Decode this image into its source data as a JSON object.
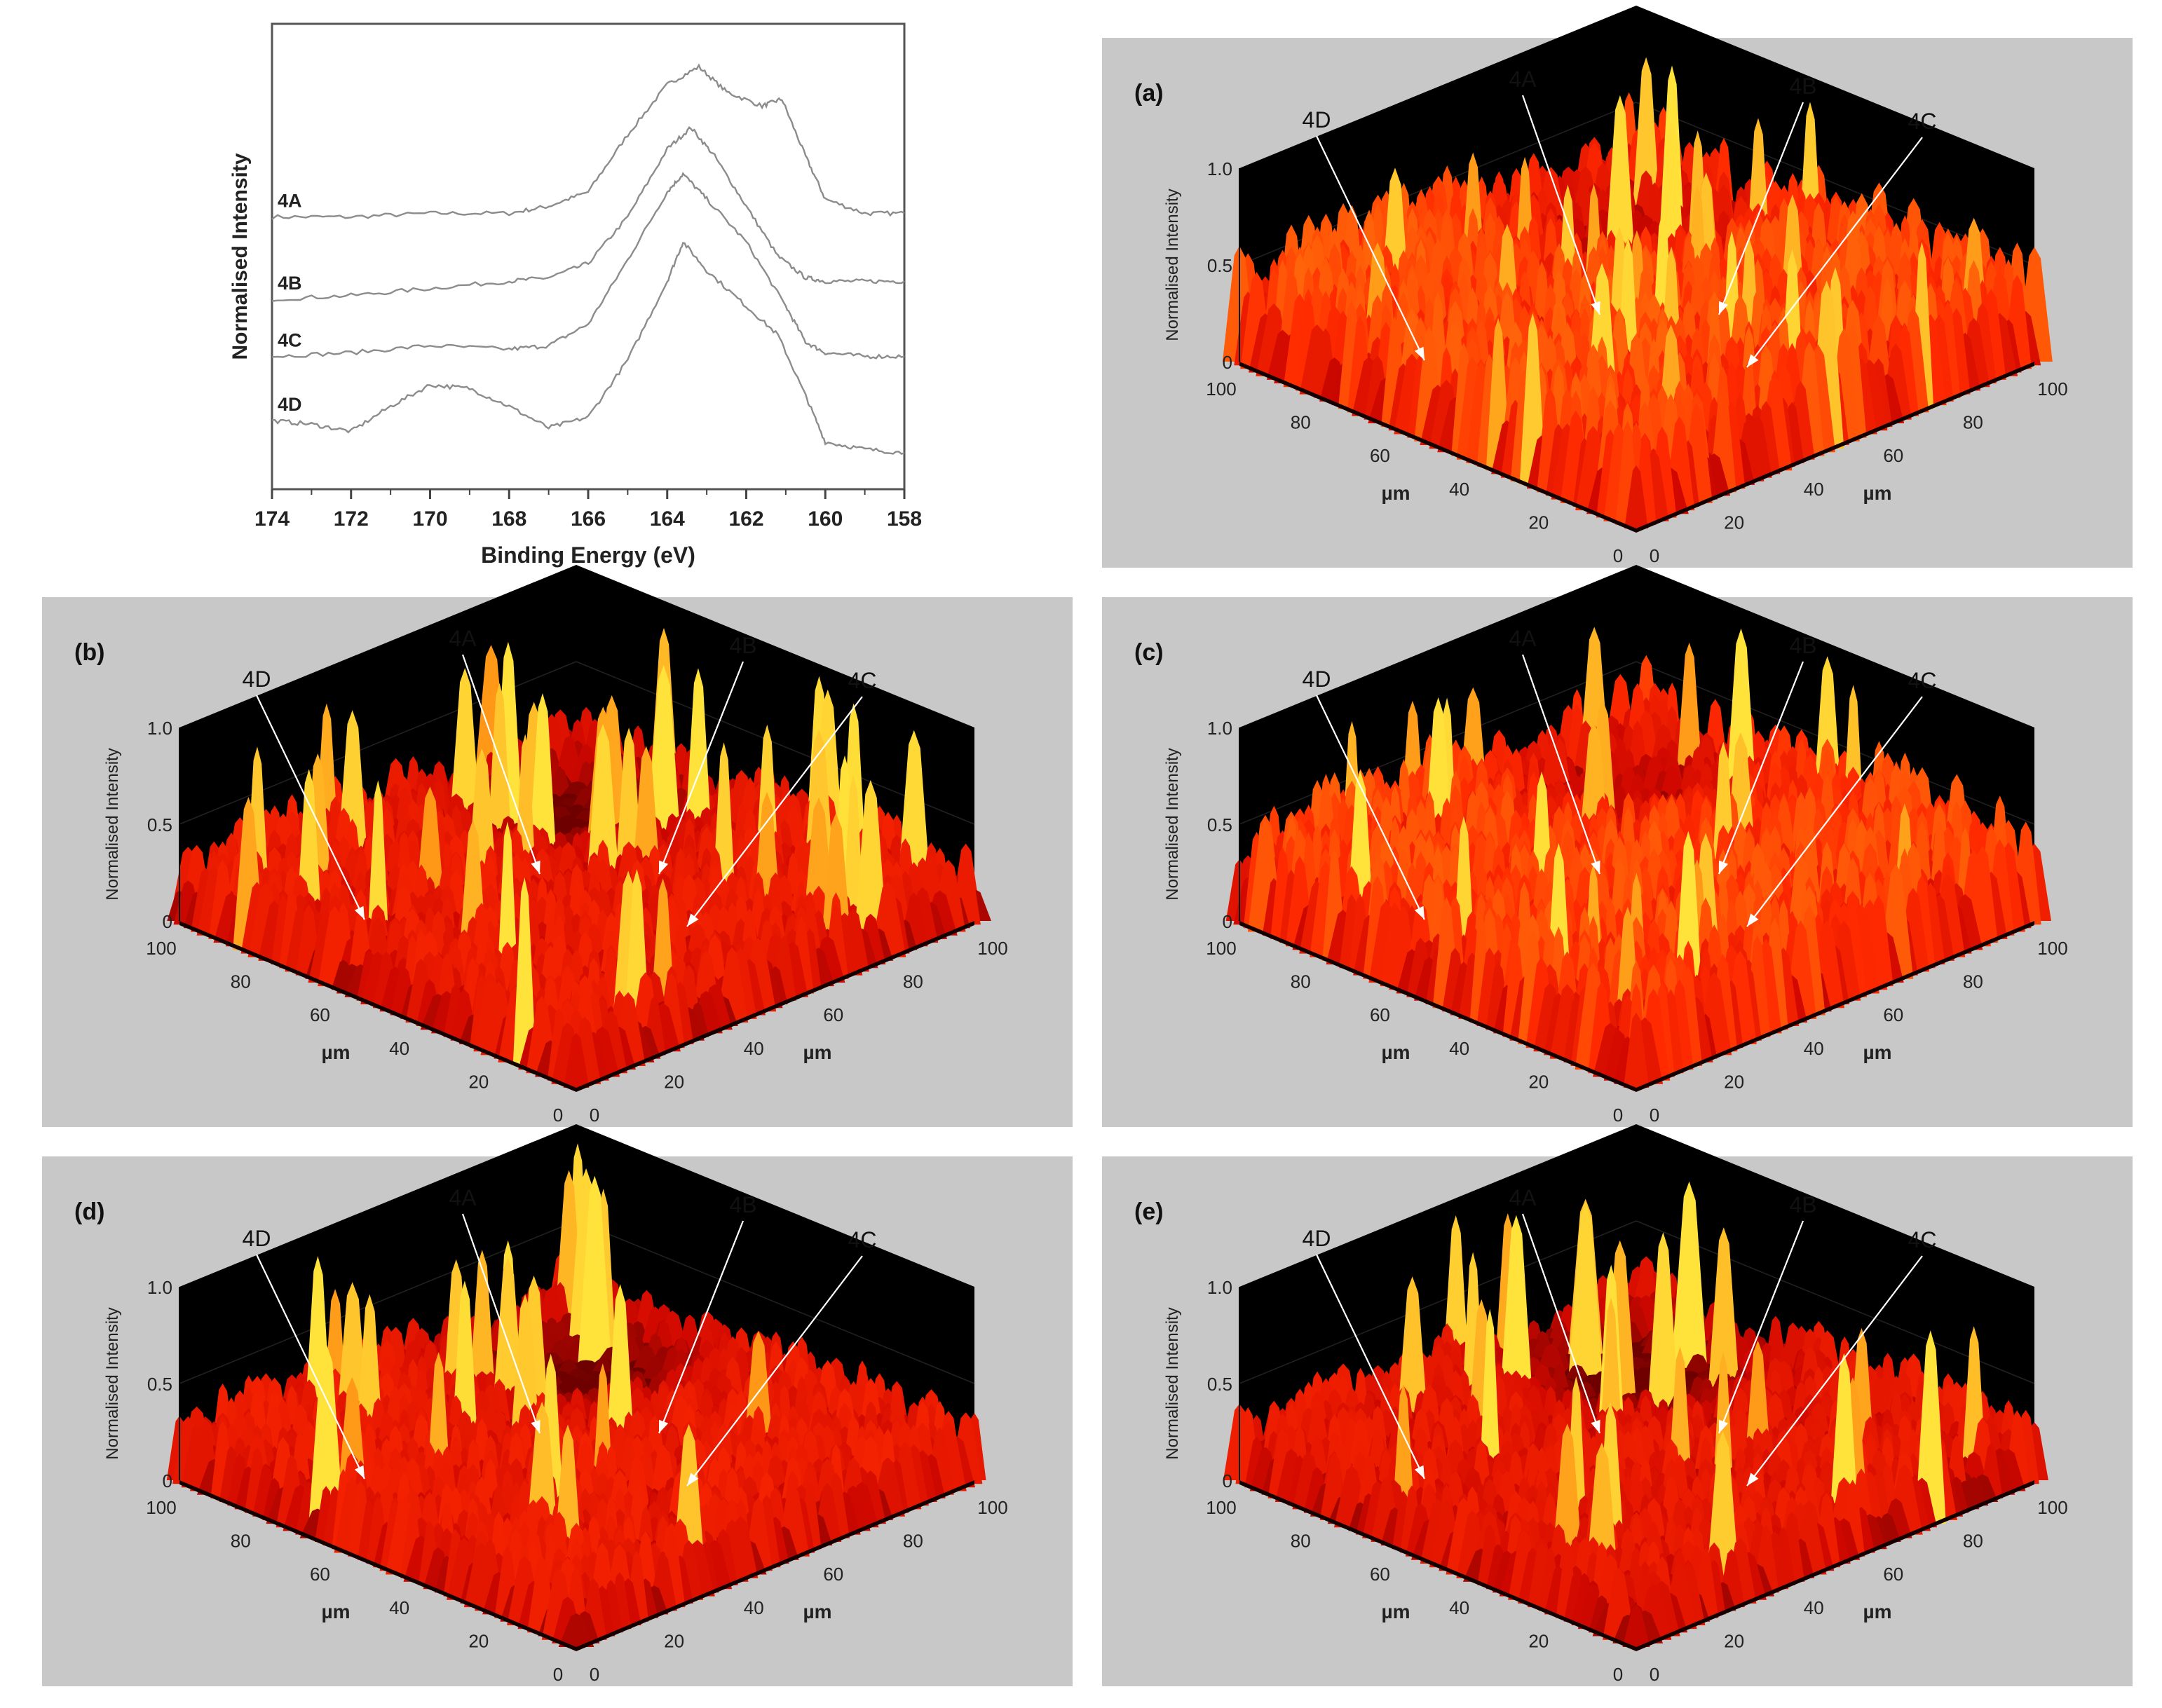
{
  "chart_data": [
    {
      "type": "line",
      "panel": "spectrum",
      "title": "",
      "xlabel": "Binding Energy (eV)",
      "ylabel": "Normalised Intensity",
      "xlim": [
        174,
        158
      ],
      "x_ticks": [
        174,
        172,
        170,
        168,
        166,
        164,
        162,
        160,
        158
      ],
      "grid": false,
      "series": [
        {
          "name": "4A",
          "x": [
            174,
            172,
            170,
            168,
            167,
            166,
            165,
            164,
            163.2,
            162.5,
            161.6,
            161.1,
            160.5,
            160,
            159,
            158
          ],
          "y": [
            0.55,
            0.55,
            0.56,
            0.56,
            0.58,
            0.62,
            0.78,
            0.92,
            0.97,
            0.9,
            0.86,
            0.88,
            0.72,
            0.6,
            0.56,
            0.56
          ]
        },
        {
          "name": "4B",
          "x": [
            174,
            172,
            170,
            168,
            167,
            166,
            165,
            164,
            163.4,
            162.8,
            162,
            161.2,
            160.5,
            160,
            159,
            158
          ],
          "y": [
            0.32,
            0.33,
            0.35,
            0.37,
            0.38,
            0.42,
            0.55,
            0.74,
            0.8,
            0.72,
            0.58,
            0.44,
            0.38,
            0.37,
            0.37,
            0.37
          ]
        },
        {
          "name": "4C",
          "x": [
            174,
            172,
            170,
            168,
            167,
            166,
            165,
            164,
            163.6,
            163,
            162,
            161,
            160.5,
            160,
            159,
            158
          ],
          "y": [
            0.16,
            0.17,
            0.19,
            0.18,
            0.19,
            0.25,
            0.43,
            0.62,
            0.67,
            0.6,
            0.48,
            0.3,
            0.2,
            0.17,
            0.16,
            0.16
          ]
        },
        {
          "name": "4D",
          "x": [
            174,
            173,
            172,
            171,
            170,
            169,
            168,
            167,
            166,
            165,
            164,
            163.6,
            163,
            162,
            161.2,
            160.5,
            160,
            159,
            158
          ],
          "y": [
            -0.02,
            -0.03,
            -0.05,
            0.02,
            0.08,
            0.07,
            0.02,
            -0.04,
            -0.01,
            0.15,
            0.37,
            0.48,
            0.4,
            0.3,
            0.22,
            0.05,
            -0.08,
            -0.1,
            -0.11
          ]
        }
      ]
    },
    {
      "type": "surface",
      "panel_label": "(a)",
      "zlabel": "Normalised Intensity",
      "xlabel": "µm",
      "ylabel": "µm",
      "z_ticks": [
        "1.0",
        "0.5",
        "0"
      ],
      "x_ticks": [
        "0",
        "20",
        "40",
        "60",
        "80",
        "100"
      ],
      "y_ticks": [
        "0",
        "20",
        "40",
        "60",
        "80",
        "100"
      ],
      "xlim": [
        0,
        100
      ],
      "ylim": [
        0,
        100
      ],
      "zlim": [
        0,
        1
      ],
      "annotations": [
        "4D",
        "4A",
        "4B",
        "4C"
      ],
      "peak_level": 0.62
    },
    {
      "type": "surface",
      "panel_label": "(b)",
      "zlabel": "Normalised Intensity",
      "xlabel": "µm",
      "ylabel": "µm",
      "z_ticks": [
        "1.0",
        "0.5",
        "0"
      ],
      "x_ticks": [
        "0",
        "20",
        "40",
        "60",
        "80",
        "100"
      ],
      "y_ticks": [
        "0",
        "20",
        "40",
        "60",
        "80",
        "100"
      ],
      "xlim": [
        0,
        100
      ],
      "ylim": [
        0,
        100
      ],
      "zlim": [
        0,
        1
      ],
      "annotations": [
        "4D",
        "4A",
        "4B",
        "4C"
      ],
      "peak_level": 0.42
    },
    {
      "type": "surface",
      "panel_label": "(c)",
      "zlabel": "Normalised Intensity",
      "xlabel": "µm",
      "ylabel": "µm",
      "z_ticks": [
        "1.0",
        "0.5",
        "0"
      ],
      "x_ticks": [
        "0",
        "20",
        "40",
        "60",
        "80",
        "100"
      ],
      "y_ticks": [
        "0",
        "20",
        "40",
        "60",
        "80",
        "100"
      ],
      "xlim": [
        0,
        100
      ],
      "ylim": [
        0,
        100
      ],
      "zlim": [
        0,
        1
      ],
      "annotations": [
        "4D",
        "4A",
        "4B",
        "4C"
      ],
      "peak_level": 0.6
    },
    {
      "type": "surface",
      "panel_label": "(d)",
      "zlabel": "Normalised Intensity",
      "xlabel": "µm",
      "ylabel": "µm",
      "z_ticks": [
        "1.0",
        "0.5",
        "0"
      ],
      "x_ticks": [
        "0",
        "20",
        "40",
        "60",
        "80",
        "100"
      ],
      "y_ticks": [
        "0",
        "20",
        "40",
        "60",
        "80",
        "100"
      ],
      "xlim": [
        0,
        100
      ],
      "ylim": [
        0,
        100
      ],
      "zlim": [
        0,
        1
      ],
      "annotations": [
        "4D",
        "4A",
        "4B",
        "4C"
      ],
      "peak_level": 0.42
    },
    {
      "type": "surface",
      "panel_label": "(e)",
      "zlabel": "Normalised Intensity",
      "xlabel": "µm",
      "ylabel": "µm",
      "z_ticks": [
        "1.0",
        "0.5",
        "0"
      ],
      "x_ticks": [
        "0",
        "20",
        "40",
        "60",
        "80",
        "100"
      ],
      "y_ticks": [
        "0",
        "20",
        "40",
        "60",
        "80",
        "100"
      ],
      "xlim": [
        0,
        100
      ],
      "ylim": [
        0,
        100
      ],
      "zlim": [
        0,
        1
      ],
      "annotations": [
        "4D",
        "4A",
        "4B",
        "4C"
      ],
      "peak_level": 0.4
    }
  ],
  "colors": {
    "panel_background": "#c8c8c8",
    "wall": "#000000",
    "surface_low": "#5a0000",
    "surface_mid": "#ff1a00",
    "surface_high": "#ffe23a",
    "spectrum_line": "#8c8c8c",
    "arrow": "#ffffff"
  }
}
